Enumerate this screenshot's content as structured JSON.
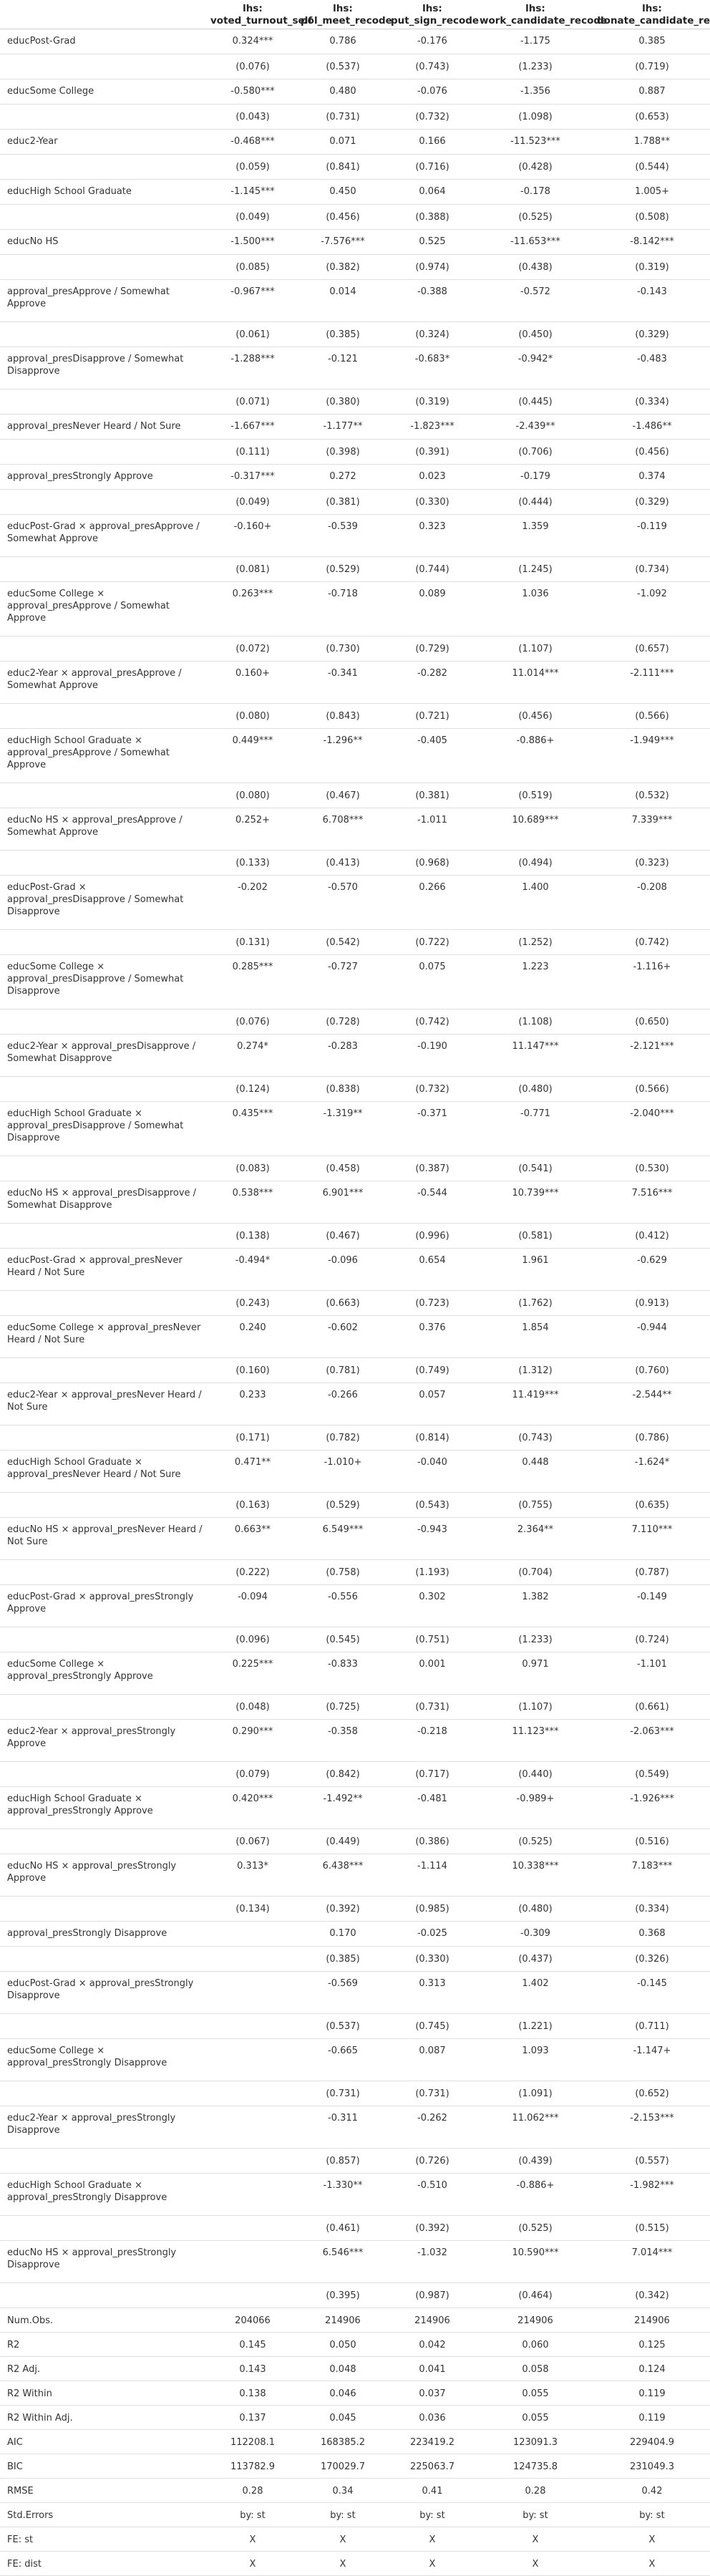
{
  "table": {
    "columns": [
      {
        "top": "lhs:",
        "name": "voted_turnout_self"
      },
      {
        "top": "lhs:",
        "name": "pol_meet_recode"
      },
      {
        "top": "lhs:",
        "name": "put_sign_recode"
      },
      {
        "top": "lhs:",
        "name": "work_candidate_recode"
      },
      {
        "top": "lhs:",
        "name": "donate_candidate_recode"
      }
    ],
    "rows": [
      {
        "type": "coef",
        "label": "educPost-Grad",
        "values": [
          "0.324***",
          "0.786",
          "-0.176",
          "-1.175",
          "0.385"
        ]
      },
      {
        "type": "se",
        "label": "",
        "values": [
          "(0.076)",
          "(0.537)",
          "(0.743)",
          "(1.233)",
          "(0.719)"
        ]
      },
      {
        "type": "coef",
        "label": "educSome College",
        "values": [
          "-0.580***",
          "0.480",
          "-0.076",
          "-1.356",
          "0.887"
        ]
      },
      {
        "type": "se",
        "label": "",
        "values": [
          "(0.043)",
          "(0.731)",
          "(0.732)",
          "(1.098)",
          "(0.653)"
        ]
      },
      {
        "type": "coef",
        "label": "educ2-Year",
        "values": [
          "-0.468***",
          "0.071",
          "0.166",
          "-11.523***",
          "1.788**"
        ]
      },
      {
        "type": "se",
        "label": "",
        "values": [
          "(0.059)",
          "(0.841)",
          "(0.716)",
          "(0.428)",
          "(0.544)"
        ]
      },
      {
        "type": "coef",
        "label": "educHigh School Graduate",
        "values": [
          "-1.145***",
          "0.450",
          "0.064",
          "-0.178",
          "1.005+"
        ]
      },
      {
        "type": "se",
        "label": "",
        "values": [
          "(0.049)",
          "(0.456)",
          "(0.388)",
          "(0.525)",
          "(0.508)"
        ]
      },
      {
        "type": "coef",
        "label": "educNo HS",
        "values": [
          "-1.500***",
          "-7.576***",
          "0.525",
          "-11.653***",
          "-8.142***"
        ]
      },
      {
        "type": "se",
        "label": "",
        "values": [
          "(0.085)",
          "(0.382)",
          "(0.974)",
          "(0.438)",
          "(0.319)"
        ]
      },
      {
        "type": "coef",
        "size": "tall",
        "label": "approval_presApprove / Somewhat Approve",
        "values": [
          "-0.967***",
          "0.014",
          "-0.388",
          "-0.572",
          "-0.143"
        ]
      },
      {
        "type": "se",
        "label": "",
        "values": [
          "(0.061)",
          "(0.385)",
          "(0.324)",
          "(0.450)",
          "(0.329)"
        ]
      },
      {
        "type": "coef",
        "size": "tall",
        "label": "approval_presDisapprove / Somewhat Disapprove",
        "values": [
          "-1.288***",
          "-0.121",
          "-0.683*",
          "-0.942*",
          "-0.483"
        ]
      },
      {
        "type": "se",
        "label": "",
        "values": [
          "(0.071)",
          "(0.380)",
          "(0.319)",
          "(0.445)",
          "(0.334)"
        ]
      },
      {
        "type": "coef",
        "label": "approval_presNever Heard / Not Sure",
        "values": [
          "-1.667***",
          "-1.177**",
          "-1.823***",
          "-2.439**",
          "-1.486**"
        ]
      },
      {
        "type": "se",
        "label": "",
        "values": [
          "(0.111)",
          "(0.398)",
          "(0.391)",
          "(0.706)",
          "(0.456)"
        ]
      },
      {
        "type": "coef",
        "label": "approval_presStrongly Approve",
        "values": [
          "-0.317***",
          "0.272",
          "0.023",
          "-0.179",
          "0.374"
        ]
      },
      {
        "type": "se",
        "label": "",
        "values": [
          "(0.049)",
          "(0.381)",
          "(0.330)",
          "(0.444)",
          "(0.329)"
        ]
      },
      {
        "type": "coef",
        "size": "tall",
        "label": "educPost-Grad × approval_presApprove / Somewhat Approve",
        "values": [
          "-0.160+",
          "-0.539",
          "0.323",
          "1.359",
          "-0.119"
        ]
      },
      {
        "type": "se",
        "label": "",
        "values": [
          "(0.081)",
          "(0.529)",
          "(0.744)",
          "(1.245)",
          "(0.734)"
        ]
      },
      {
        "type": "coef",
        "size": "xtall",
        "label": "educSome College × approval_presApprove / Somewhat Approve",
        "values": [
          "0.263***",
          "-0.718",
          "0.089",
          "1.036",
          "-1.092"
        ]
      },
      {
        "type": "se",
        "label": "",
        "values": [
          "(0.072)",
          "(0.730)",
          "(0.729)",
          "(1.107)",
          "(0.657)"
        ]
      },
      {
        "type": "coef",
        "size": "tall",
        "label": "educ2-Year × approval_presApprove / Somewhat Approve",
        "values": [
          "0.160+",
          "-0.341",
          "-0.282",
          "11.014***",
          "-2.111***"
        ]
      },
      {
        "type": "se",
        "label": "",
        "values": [
          "(0.080)",
          "(0.843)",
          "(0.721)",
          "(0.456)",
          "(0.566)"
        ]
      },
      {
        "type": "coef",
        "size": "xtall",
        "label": "educHigh School Graduate × approval_presApprove / Somewhat Approve",
        "values": [
          "0.449***",
          "-1.296**",
          "-0.405",
          "-0.886+",
          "-1.949***"
        ]
      },
      {
        "type": "se",
        "label": "",
        "values": [
          "(0.080)",
          "(0.467)",
          "(0.381)",
          "(0.519)",
          "(0.532)"
        ]
      },
      {
        "type": "coef",
        "size": "tall",
        "label": "educNo HS × approval_presApprove / Somewhat Approve",
        "values": [
          "0.252+",
          "6.708***",
          "-1.011",
          "10.689***",
          "7.339***"
        ]
      },
      {
        "type": "se",
        "label": "",
        "values": [
          "(0.133)",
          "(0.413)",
          "(0.968)",
          "(0.494)",
          "(0.323)"
        ]
      },
      {
        "type": "coef",
        "size": "xtall",
        "label": "educPost-Grad × approval_presDisapprove / Somewhat Disapprove",
        "values": [
          "-0.202",
          "-0.570",
          "0.266",
          "1.400",
          "-0.208"
        ]
      },
      {
        "type": "se",
        "label": "",
        "values": [
          "(0.131)",
          "(0.542)",
          "(0.722)",
          "(1.252)",
          "(0.742)"
        ]
      },
      {
        "type": "coef",
        "size": "xtall",
        "label": "educSome College × approval_presDisapprove / Somewhat Disapprove",
        "values": [
          "0.285***",
          "-0.727",
          "0.075",
          "1.223",
          "-1.116+"
        ]
      },
      {
        "type": "se",
        "label": "",
        "values": [
          "(0.076)",
          "(0.728)",
          "(0.742)",
          "(1.108)",
          "(0.650)"
        ]
      },
      {
        "type": "coef",
        "size": "tall",
        "label": "educ2-Year × approval_presDisapprove / Somewhat Disapprove",
        "values": [
          "0.274*",
          "-0.283",
          "-0.190",
          "11.147***",
          "-2.121***"
        ]
      },
      {
        "type": "se",
        "label": "",
        "values": [
          "(0.124)",
          "(0.838)",
          "(0.732)",
          "(0.480)",
          "(0.566)"
        ]
      },
      {
        "type": "coef",
        "size": "xtall",
        "label": "educHigh School Graduate × approval_presDisapprove / Somewhat Disapprove",
        "values": [
          "0.435***",
          "-1.319**",
          "-0.371",
          "-0.771",
          "-2.040***"
        ]
      },
      {
        "type": "se",
        "label": "",
        "values": [
          "(0.083)",
          "(0.458)",
          "(0.387)",
          "(0.541)",
          "(0.530)"
        ]
      },
      {
        "type": "coef",
        "size": "tall",
        "label": "educNo HS × approval_presDisapprove / Somewhat Disapprove",
        "values": [
          "0.538***",
          "6.901***",
          "-0.544",
          "10.739***",
          "7.516***"
        ]
      },
      {
        "type": "se",
        "label": "",
        "values": [
          "(0.138)",
          "(0.467)",
          "(0.996)",
          "(0.581)",
          "(0.412)"
        ]
      },
      {
        "type": "coef",
        "size": "tall",
        "label": "educPost-Grad × approval_presNever Heard / Not Sure",
        "values": [
          "-0.494*",
          "-0.096",
          "0.654",
          "1.961",
          "-0.629"
        ]
      },
      {
        "type": "se",
        "label": "",
        "values": [
          "(0.243)",
          "(0.663)",
          "(0.723)",
          "(1.762)",
          "(0.913)"
        ]
      },
      {
        "type": "coef",
        "size": "tall",
        "label": "educSome College × approval_presNever Heard / Not Sure",
        "values": [
          "0.240",
          "-0.602",
          "0.376",
          "1.854",
          "-0.944"
        ]
      },
      {
        "type": "se",
        "label": "",
        "values": [
          "(0.160)",
          "(0.781)",
          "(0.749)",
          "(1.312)",
          "(0.760)"
        ]
      },
      {
        "type": "coef",
        "size": "tall",
        "label": "educ2-Year × approval_presNever Heard / Not Sure",
        "values": [
          "0.233",
          "-0.266",
          "0.057",
          "11.419***",
          "-2.544**"
        ]
      },
      {
        "type": "se",
        "label": "",
        "values": [
          "(0.171)",
          "(0.782)",
          "(0.814)",
          "(0.743)",
          "(0.786)"
        ]
      },
      {
        "type": "coef",
        "size": "tall",
        "label": "educHigh School Graduate × approval_presNever Heard / Not Sure",
        "values": [
          "0.471**",
          "-1.010+",
          "-0.040",
          "0.448",
          "-1.624*"
        ]
      },
      {
        "type": "se",
        "label": "",
        "values": [
          "(0.163)",
          "(0.529)",
          "(0.543)",
          "(0.755)",
          "(0.635)"
        ]
      },
      {
        "type": "coef",
        "size": "tall",
        "label": "educNo HS × approval_presNever Heard / Not Sure",
        "values": [
          "0.663**",
          "6.549***",
          "-0.943",
          "2.364**",
          "7.110***"
        ]
      },
      {
        "type": "se",
        "label": "",
        "values": [
          "(0.222)",
          "(0.758)",
          "(1.193)",
          "(0.704)",
          "(0.787)"
        ]
      },
      {
        "type": "coef",
        "size": "tall",
        "label": "educPost-Grad × approval_presStrongly Approve",
        "values": [
          "-0.094",
          "-0.556",
          "0.302",
          "1.382",
          "-0.149"
        ]
      },
      {
        "type": "se",
        "label": "",
        "values": [
          "(0.096)",
          "(0.545)",
          "(0.751)",
          "(1.233)",
          "(0.724)"
        ]
      },
      {
        "type": "coef",
        "size": "tall",
        "label": "educSome College × approval_presStrongly Approve",
        "values": [
          "0.225***",
          "-0.833",
          "0.001",
          "0.971",
          "-1.101"
        ]
      },
      {
        "type": "se",
        "label": "",
        "values": [
          "(0.048)",
          "(0.725)",
          "(0.731)",
          "(1.107)",
          "(0.661)"
        ]
      },
      {
        "type": "coef",
        "size": "tall",
        "label": "educ2-Year × approval_presStrongly Approve",
        "values": [
          "0.290***",
          "-0.358",
          "-0.218",
          "11.123***",
          "-2.063***"
        ]
      },
      {
        "type": "se",
        "label": "",
        "values": [
          "(0.079)",
          "(0.842)",
          "(0.717)",
          "(0.440)",
          "(0.549)"
        ]
      },
      {
        "type": "coef",
        "size": "tall",
        "label": "educHigh School Graduate × approval_presStrongly Approve",
        "values": [
          "0.420***",
          "-1.492**",
          "-0.481",
          "-0.989+",
          "-1.926***"
        ]
      },
      {
        "type": "se",
        "label": "",
        "values": [
          "(0.067)",
          "(0.449)",
          "(0.386)",
          "(0.525)",
          "(0.516)"
        ]
      },
      {
        "type": "coef",
        "size": "tall",
        "label": "educNo HS × approval_presStrongly Approve",
        "values": [
          "0.313*",
          "6.438***",
          "-1.114",
          "10.338***",
          "7.183***"
        ]
      },
      {
        "type": "se",
        "label": "",
        "values": [
          "(0.134)",
          "(0.392)",
          "(0.985)",
          "(0.480)",
          "(0.334)"
        ]
      },
      {
        "type": "coef",
        "label": "approval_presStrongly Disapprove",
        "values": [
          "",
          "0.170",
          "-0.025",
          "-0.309",
          "0.368"
        ]
      },
      {
        "type": "se",
        "label": "",
        "values": [
          "",
          "(0.385)",
          "(0.330)",
          "(0.437)",
          "(0.326)"
        ]
      },
      {
        "type": "coef",
        "size": "tall",
        "label": "educPost-Grad × approval_presStrongly Disapprove",
        "values": [
          "",
          "-0.569",
          "0.313",
          "1.402",
          "-0.145"
        ]
      },
      {
        "type": "se",
        "label": "",
        "values": [
          "",
          "(0.537)",
          "(0.745)",
          "(1.221)",
          "(0.711)"
        ]
      },
      {
        "type": "coef",
        "size": "tall",
        "label": "educSome College × approval_presStrongly Disapprove",
        "values": [
          "",
          "-0.665",
          "0.087",
          "1.093",
          "-1.147+"
        ]
      },
      {
        "type": "se",
        "label": "",
        "values": [
          "",
          "(0.731)",
          "(0.731)",
          "(1.091)",
          "(0.652)"
        ]
      },
      {
        "type": "coef",
        "size": "tall",
        "label": "educ2-Year × approval_presStrongly Disapprove",
        "values": [
          "",
          "-0.311",
          "-0.262",
          "11.062***",
          "-2.153***"
        ]
      },
      {
        "type": "se",
        "label": "",
        "values": [
          "",
          "(0.857)",
          "(0.726)",
          "(0.439)",
          "(0.557)"
        ]
      },
      {
        "type": "coef",
        "size": "tall",
        "label": "educHigh School Graduate × approval_presStrongly Disapprove",
        "values": [
          "",
          "-1.330**",
          "-0.510",
          "-0.886+",
          "-1.982***"
        ]
      },
      {
        "type": "se",
        "label": "",
        "values": [
          "",
          "(0.461)",
          "(0.392)",
          "(0.525)",
          "(0.515)"
        ]
      },
      {
        "type": "coef",
        "size": "tall",
        "label": "educNo HS × approval_presStrongly Disapprove",
        "values": [
          "",
          "6.546***",
          "-1.032",
          "10.590***",
          "7.014***"
        ]
      },
      {
        "type": "se",
        "label": "",
        "values": [
          "",
          "(0.395)",
          "(0.987)",
          "(0.464)",
          "(0.342)"
        ]
      },
      {
        "type": "stat",
        "label": "Num.Obs.",
        "values": [
          "204066",
          "214906",
          "214906",
          "214906",
          "214906"
        ]
      },
      {
        "type": "stat",
        "label": "R2",
        "values": [
          "0.145",
          "0.050",
          "0.042",
          "0.060",
          "0.125"
        ]
      },
      {
        "type": "stat",
        "label": "R2 Adj.",
        "values": [
          "0.143",
          "0.048",
          "0.041",
          "0.058",
          "0.124"
        ]
      },
      {
        "type": "stat",
        "label": "R2 Within",
        "values": [
          "0.138",
          "0.046",
          "0.037",
          "0.055",
          "0.119"
        ]
      },
      {
        "type": "stat",
        "label": "R2 Within Adj.",
        "values": [
          "0.137",
          "0.045",
          "0.036",
          "0.055",
          "0.119"
        ]
      },
      {
        "type": "stat",
        "label": "AIC",
        "values": [
          "112208.1",
          "168385.2",
          "223419.2",
          "123091.3",
          "229404.9"
        ]
      },
      {
        "type": "stat",
        "label": "BIC",
        "values": [
          "113782.9",
          "170029.7",
          "225063.7",
          "124735.8",
          "231049.3"
        ]
      },
      {
        "type": "stat",
        "label": "RMSE",
        "values": [
          "0.28",
          "0.34",
          "0.41",
          "0.28",
          "0.42"
        ]
      },
      {
        "type": "stat",
        "label": "Std.Errors",
        "values": [
          "by: st",
          "by: st",
          "by: st",
          "by: st",
          "by: st"
        ]
      },
      {
        "type": "stat",
        "label": "FE: st",
        "values": [
          "X",
          "X",
          "X",
          "X",
          "X"
        ]
      },
      {
        "type": "stat",
        "label": "FE: dist",
        "values": [
          "X",
          "X",
          "X",
          "X",
          "X"
        ]
      }
    ]
  }
}
